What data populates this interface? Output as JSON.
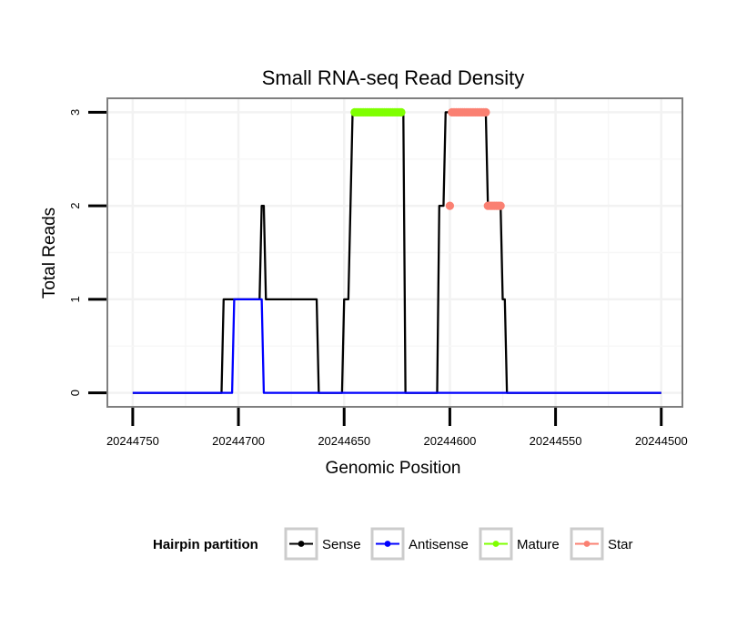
{
  "chart_data": {
    "type": "line",
    "title": "Small RNA-seq Read Density",
    "xlabel": "Genomic Position",
    "ylabel": "Total Reads",
    "x_reversed": true,
    "xlim": [
      20244762,
      20244490
    ],
    "ylim": [
      -0.15,
      3.15
    ],
    "x_ticks": [
      20244750,
      20244700,
      20244650,
      20244600,
      20244550,
      20244500
    ],
    "x_tick_labels": [
      "20244750",
      "20244700",
      "20244650",
      "20244600",
      "20244550",
      "20244500"
    ],
    "y_ticks": [
      0,
      1,
      2,
      3
    ],
    "y_tick_labels": [
      "0",
      "1",
      "2",
      "3"
    ],
    "grid": true,
    "legend": {
      "title": "Hairpin partition",
      "position": "bottom",
      "entries": [
        "Sense",
        "Antisense",
        "Mature",
        "Star"
      ]
    },
    "series": [
      {
        "name": "Sense",
        "color": "#000000",
        "style": "line",
        "x": [
          20244750,
          20244708,
          20244707,
          20244690,
          20244689,
          20244688,
          20244687,
          20244686,
          20244663,
          20244662,
          20244651,
          20244650,
          20244648,
          20244647,
          20244646,
          20244622,
          20244621,
          20244606,
          20244605,
          20244603,
          20244602,
          20244601,
          20244583,
          20244582,
          20244576,
          20244575,
          20244574,
          20244573,
          20244500
        ],
        "values": [
          0,
          0,
          1,
          1,
          2,
          2,
          1,
          1,
          1,
          0,
          0,
          1,
          1,
          2,
          3,
          3,
          0,
          0,
          2,
          2,
          3,
          3,
          3,
          2,
          2,
          1,
          1,
          0,
          0
        ]
      },
      {
        "name": "Antisense",
        "color": "#0000ff",
        "style": "line",
        "x": [
          20244750,
          20244703,
          20244702,
          20244689,
          20244688,
          20244500
        ],
        "values": [
          0,
          0,
          1,
          1,
          0,
          0
        ]
      },
      {
        "name": "Mature",
        "color": "#7fff00",
        "style": "points",
        "x": [
          20244645,
          20244644,
          20244643,
          20244642,
          20244641,
          20244640,
          20244639,
          20244638,
          20244637,
          20244636,
          20244635,
          20244634,
          20244633,
          20244632,
          20244631,
          20244630,
          20244629,
          20244628,
          20244627,
          20244626,
          20244625,
          20244624,
          20244623
        ],
        "values": [
          3,
          3,
          3,
          3,
          3,
          3,
          3,
          3,
          3,
          3,
          3,
          3,
          3,
          3,
          3,
          3,
          3,
          3,
          3,
          3,
          3,
          3,
          3
        ]
      },
      {
        "name": "Star",
        "color": "#fa8072",
        "style": "points",
        "x": [
          20244600,
          20244599,
          20244598,
          20244597,
          20244596,
          20244595,
          20244594,
          20244593,
          20244592,
          20244591,
          20244590,
          20244589,
          20244588,
          20244587,
          20244586,
          20244585,
          20244584,
          20244583,
          20244582,
          20244581,
          20244580,
          20244579,
          20244578,
          20244577,
          20244576
        ],
        "values": [
          2,
          3,
          3,
          3,
          3,
          3,
          3,
          3,
          3,
          3,
          3,
          3,
          3,
          3,
          3,
          3,
          3,
          3,
          2,
          2,
          2,
          2,
          2,
          2,
          2
        ]
      }
    ]
  }
}
